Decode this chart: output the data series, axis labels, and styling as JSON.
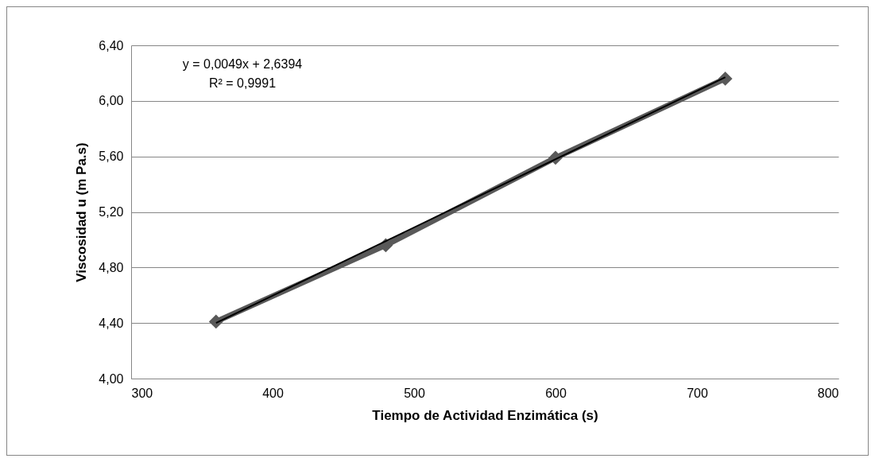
{
  "chart_data": {
    "type": "line",
    "xlabel": "Tiempo de Actividad Enzimática (s)",
    "ylabel": "Viscosidad u (m Pa.s)",
    "x": [
      360,
      480,
      600,
      720
    ],
    "series": [
      {
        "color": "#595959",
        "values": [
          4.41,
          4.96,
          5.59,
          6.16
        ],
        "marker": "diamond"
      },
      {
        "type": "line",
        "color": "#000000",
        "x": [
          360,
          720
        ],
        "values": [
          4.4,
          6.17
        ],
        "marker": "none"
      }
    ],
    "xlim": [
      300,
      800
    ],
    "xticks": [
      300,
      400,
      500,
      600,
      700,
      800
    ],
    "ylim": [
      4,
      6.4
    ],
    "yticks": [
      {
        "value": 4,
        "label": "4,00"
      },
      {
        "value": 4.4,
        "label": "4,40"
      },
      {
        "value": 4.8,
        "label": "4,80"
      },
      {
        "value": 5.2,
        "label": "5,20"
      },
      {
        "value": 5.6,
        "label": "5,60"
      },
      {
        "value": 6,
        "label": "6,00"
      },
      {
        "value": 6.4,
        "label": "6,40"
      }
    ],
    "annotations": [
      "y = 0,0049x + 2,6394",
      "R² = 0,9991"
    ],
    "grid": "y"
  }
}
